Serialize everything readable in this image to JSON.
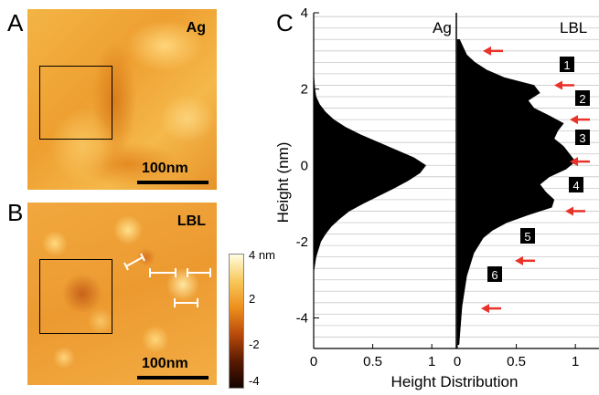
{
  "panels": {
    "a": {
      "letter": "A",
      "label": "Ag",
      "scalebar": "100nm"
    },
    "b": {
      "letter": "B",
      "label": "LBL",
      "scalebar": "100nm"
    },
    "c": {
      "letter": "C"
    }
  },
  "colorbar": {
    "ticks": [
      "4 nm",
      "2",
      "-2",
      "-4"
    ],
    "colors": [
      "#fffde0",
      "#f7c85a",
      "#ee8f1c",
      "#b84a0b",
      "#5a1a02",
      "#140400"
    ]
  },
  "chart_data": {
    "type": "area",
    "ylabel": "Height (nm)",
    "xlabel": "Height Distribution",
    "ylim": [
      -4.8,
      4.0
    ],
    "yticks": [
      "4",
      "2",
      "0",
      "-2",
      "-4"
    ],
    "series": [
      {
        "name": "Ag",
        "xlim": [
          0,
          1.2
        ],
        "xticks": [
          "0",
          "0.5",
          "1"
        ],
        "y": [
          2.4,
          2.0,
          1.8,
          1.6,
          1.4,
          1.2,
          1.0,
          0.8,
          0.6,
          0.4,
          0.2,
          0.0,
          -0.2,
          -0.4,
          -0.6,
          -0.8,
          -1.0,
          -1.2,
          -1.4,
          -1.6,
          -1.8,
          -2.0,
          -2.2,
          -2.4,
          -2.6,
          -2.8
        ],
        "values": [
          0.0,
          0.01,
          0.02,
          0.05,
          0.1,
          0.17,
          0.27,
          0.4,
          0.55,
          0.7,
          0.85,
          0.95,
          0.9,
          0.8,
          0.68,
          0.55,
          0.42,
          0.3,
          0.22,
          0.15,
          0.1,
          0.06,
          0.04,
          0.02,
          0.01,
          0.0
        ]
      },
      {
        "name": "LBL",
        "xlim": [
          0,
          1.2
        ],
        "xticks": [
          "0",
          "0.5",
          "1"
        ],
        "y": [
          3.3,
          3.1,
          2.9,
          2.7,
          2.5,
          2.3,
          2.1,
          1.9,
          1.7,
          1.5,
          1.3,
          1.1,
          0.9,
          0.7,
          0.5,
          0.3,
          0.1,
          -0.1,
          -0.3,
          -0.5,
          -0.7,
          -0.9,
          -1.1,
          -1.3,
          -1.5,
          -1.7,
          -1.9,
          -2.1,
          -2.3,
          -2.5,
          -2.7,
          -2.9,
          -3.1,
          -3.3,
          -3.5,
          -3.7,
          -3.9,
          -4.1,
          -4.3,
          -4.5,
          -4.7
        ],
        "values": [
          0.02,
          0.05,
          0.08,
          0.15,
          0.25,
          0.4,
          0.65,
          0.7,
          0.6,
          0.65,
          0.78,
          0.9,
          0.85,
          0.82,
          0.9,
          0.95,
          1.0,
          0.92,
          0.78,
          0.7,
          0.75,
          0.82,
          0.8,
          0.6,
          0.42,
          0.3,
          0.22,
          0.18,
          0.14,
          0.12,
          0.1,
          0.08,
          0.07,
          0.06,
          0.05,
          0.04,
          0.035,
          0.03,
          0.025,
          0.02,
          0.015
        ]
      }
    ],
    "annotations": {
      "peak_labels": [
        "1",
        "2",
        "3",
        "4",
        "5",
        "6"
      ],
      "arrow_heights": [
        3.0,
        2.1,
        1.2,
        0.1,
        -1.2,
        -2.5,
        -3.75
      ],
      "arrow_color": "#e8322a"
    },
    "grid": true
  }
}
